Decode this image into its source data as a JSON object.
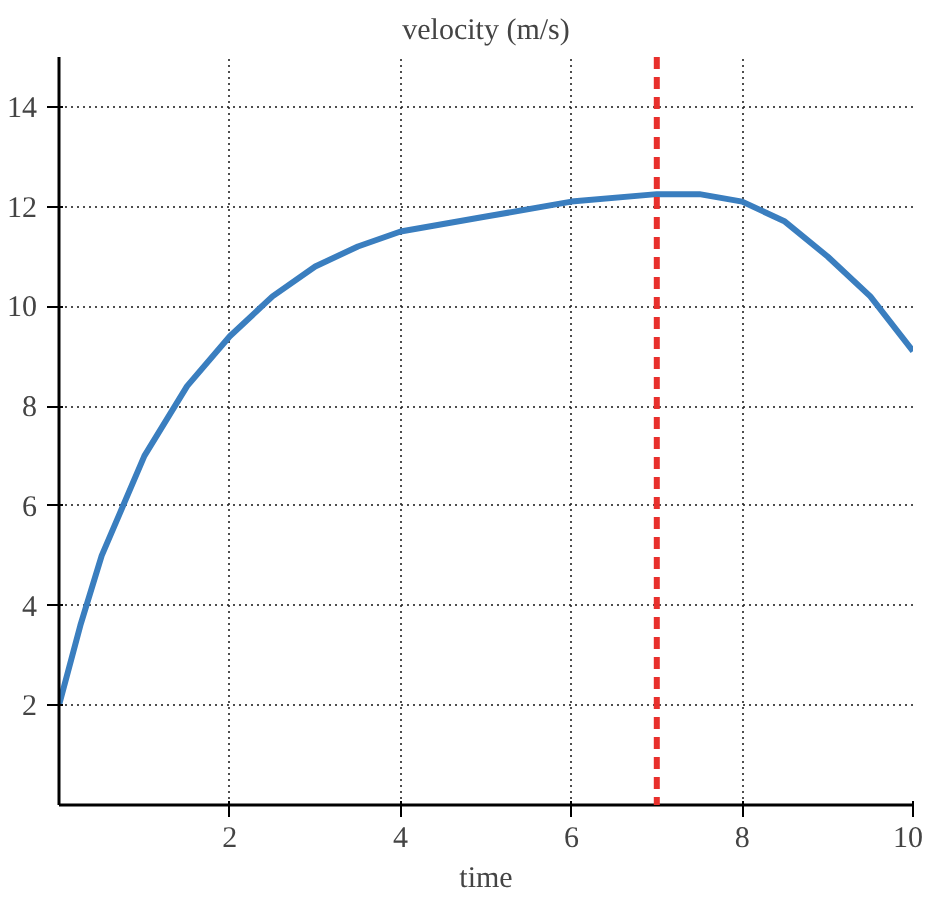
{
  "chart_data": {
    "type": "line",
    "title": "velocity (m/s)",
    "xlabel": "time",
    "x": [
      0,
      0.25,
      0.5,
      1,
      1.5,
      2,
      2.5,
      3,
      3.5,
      4,
      5,
      6,
      7,
      7.5,
      8,
      8.5,
      9,
      9.5,
      10
    ],
    "series": [
      {
        "color": "#3a7ebf",
        "values": [
          2,
          3.6,
          5,
          7,
          8.4,
          9.4,
          10.2,
          10.8,
          11.2,
          11.5,
          11.8,
          12.1,
          12.25,
          12.25,
          12.1,
          11.7,
          11,
          10.2,
          9.1
        ]
      }
    ],
    "xlim": [
      0,
      10
    ],
    "ylim": [
      0,
      15
    ],
    "xticks": [
      2,
      4,
      6,
      8,
      10
    ],
    "yticks": [
      2,
      4,
      6,
      8,
      10,
      12,
      14
    ],
    "ref_lines": [
      {
        "axis": "x",
        "value": 7,
        "color": "#e8302c",
        "line_style": "dashed"
      }
    ],
    "grid": true,
    "marker": "none",
    "line_style": "solid"
  }
}
